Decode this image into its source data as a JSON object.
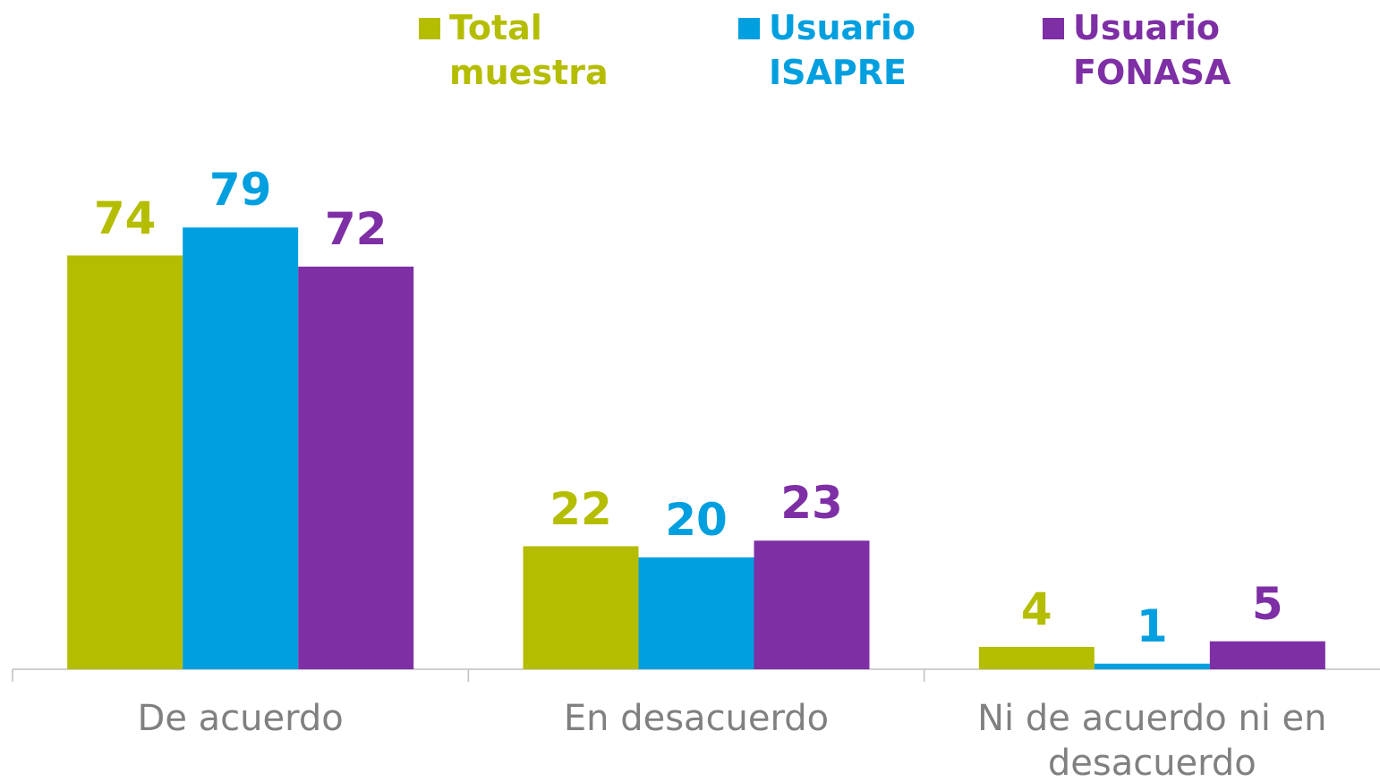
{
  "chart_data": {
    "type": "bar",
    "categories": [
      "De acuerdo",
      "En desacuerdo",
      "Ni de acuerdo ni en desacuerdo"
    ],
    "series": [
      {
        "name": "Total muestra",
        "color": "#b5bd00",
        "values": [
          74,
          22,
          4
        ]
      },
      {
        "name": "Usuario ISAPRE",
        "color": "#009fdf",
        "values": [
          79,
          20,
          1
        ]
      },
      {
        "name": "Usuario FONASA",
        "color": "#7e2fa5",
        "values": [
          72,
          23,
          5
        ]
      }
    ],
    "legend": "top"
  }
}
